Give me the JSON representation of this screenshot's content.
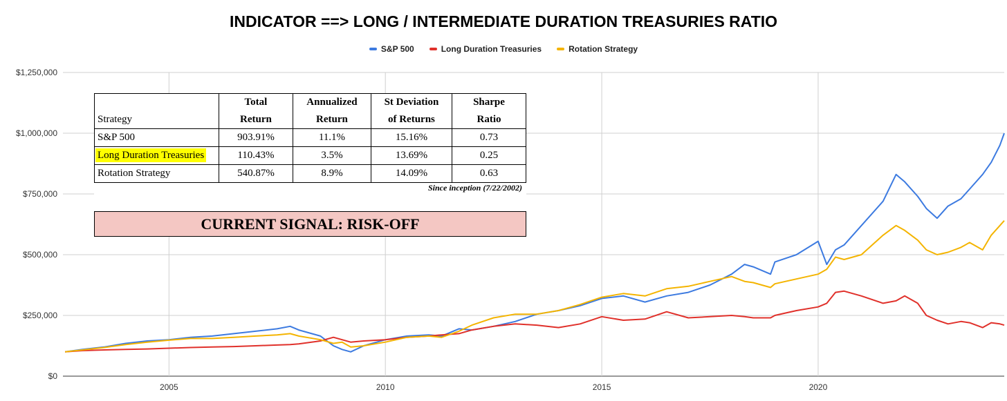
{
  "title": "INDICATOR ==> LONG / INTERMEDIATE DURATION TREASURIES RATIO",
  "legend": [
    {
      "label": "S&P 500",
      "color": "#3c7ae0"
    },
    {
      "label": "Long Duration Treasuries",
      "color": "#e0302a"
    },
    {
      "label": "Rotation Strategy",
      "color": "#f4b400"
    }
  ],
  "stats_table": {
    "headers": [
      [
        "",
        "Strategy"
      ],
      [
        "Total",
        "Return"
      ],
      [
        "Annualized",
        "Return"
      ],
      [
        "St Deviation",
        "of Returns"
      ],
      [
        "Sharpe",
        "Ratio"
      ]
    ],
    "rows": [
      {
        "strategy": "S&P 500",
        "total": "903.91%",
        "annualized": "11.1%",
        "stdev": "15.16%",
        "sharpe": "0.73"
      },
      {
        "strategy": "Long Duration Treasuries",
        "total": "110.43%",
        "annualized": "3.5%",
        "stdev": "13.69%",
        "sharpe": "0.25"
      },
      {
        "strategy": "Rotation Strategy",
        "total": "540.87%",
        "annualized": "8.9%",
        "stdev": "14.09%",
        "sharpe": "0.63"
      }
    ],
    "note": "Since inception (7/22/2002)",
    "signal": "CURRENT SIGNAL: RISK-OFF",
    "signal_color": "#f4c7c3",
    "highlight_color": "#ffff00"
  },
  "chart_data": {
    "type": "line",
    "title": "INDICATOR ==> LONG / INTERMEDIATE DURATION TREASURIES RATIO",
    "xlabel": "",
    "ylabel": "",
    "xlim": [
      2002.55,
      2024.3
    ],
    "ylim": [
      0,
      1250000
    ],
    "x_ticks": [
      2005,
      2010,
      2015,
      2020
    ],
    "y_ticks": [
      {
        "value": 0,
        "label": "$0"
      },
      {
        "value": 250000,
        "label": "$250,000"
      },
      {
        "value": 500000,
        "label": "$500,000"
      },
      {
        "value": 750000,
        "label": "$750,000"
      },
      {
        "value": 1000000,
        "label": "$1,000,000"
      },
      {
        "value": 1250000,
        "label": "$1,250,000"
      }
    ],
    "grid": true,
    "legend_position": "top-center",
    "x": [
      2002.6,
      2003.0,
      2003.5,
      2004.0,
      2004.5,
      2005.0,
      2005.5,
      2006.0,
      2006.5,
      2007.0,
      2007.5,
      2007.8,
      2008.0,
      2008.5,
      2008.8,
      2009.0,
      2009.2,
      2009.5,
      2010.0,
      2010.5,
      2011.0,
      2011.3,
      2011.7,
      2012.0,
      2012.5,
      2013.0,
      2013.5,
      2014.0,
      2014.5,
      2015.0,
      2015.5,
      2016.0,
      2016.5,
      2017.0,
      2017.5,
      2018.0,
      2018.3,
      2018.5,
      2018.9,
      2019.0,
      2019.5,
      2020.0,
      2020.2,
      2020.4,
      2020.6,
      2021.0,
      2021.5,
      2021.8,
      2022.0,
      2022.3,
      2022.5,
      2022.75,
      2023.0,
      2023.3,
      2023.5,
      2023.8,
      2024.0,
      2024.2,
      2024.3
    ],
    "series": [
      {
        "name": "S&P 500",
        "color": "#3c7ae0",
        "values": [
          100000,
          110000,
          120000,
          135000,
          145000,
          150000,
          160000,
          165000,
          175000,
          185000,
          195000,
          205000,
          190000,
          165000,
          125000,
          110000,
          100000,
          125000,
          150000,
          165000,
          170000,
          165000,
          195000,
          190000,
          205000,
          225000,
          255000,
          270000,
          290000,
          320000,
          330000,
          305000,
          330000,
          345000,
          375000,
          420000,
          460000,
          450000,
          420000,
          470000,
          500000,
          555000,
          460000,
          520000,
          540000,
          620000,
          720000,
          830000,
          800000,
          740000,
          690000,
          650000,
          700000,
          730000,
          770000,
          830000,
          880000,
          950000,
          1000000
        ]
      },
      {
        "name": "Long Duration Treasuries",
        "color": "#e0302a",
        "values": [
          100000,
          105000,
          108000,
          110000,
          112000,
          115000,
          118000,
          120000,
          122000,
          125000,
          128000,
          130000,
          133000,
          145000,
          160000,
          150000,
          140000,
          145000,
          150000,
          160000,
          165000,
          170000,
          175000,
          190000,
          205000,
          215000,
          210000,
          200000,
          215000,
          245000,
          230000,
          235000,
          265000,
          240000,
          245000,
          250000,
          245000,
          240000,
          240000,
          250000,
          270000,
          285000,
          300000,
          345000,
          350000,
          330000,
          300000,
          310000,
          330000,
          300000,
          250000,
          230000,
          215000,
          225000,
          220000,
          200000,
          220000,
          215000,
          210000
        ]
      },
      {
        "name": "Rotation Strategy",
        "color": "#f4b400",
        "values": [
          100000,
          108000,
          118000,
          130000,
          140000,
          148000,
          155000,
          155000,
          160000,
          165000,
          170000,
          175000,
          165000,
          150000,
          135000,
          140000,
          120000,
          125000,
          140000,
          160000,
          165000,
          160000,
          185000,
          210000,
          240000,
          255000,
          255000,
          270000,
          295000,
          325000,
          340000,
          330000,
          360000,
          370000,
          390000,
          410000,
          390000,
          385000,
          365000,
          380000,
          400000,
          420000,
          440000,
          490000,
          480000,
          500000,
          580000,
          620000,
          600000,
          560000,
          520000,
          500000,
          510000,
          530000,
          550000,
          520000,
          580000,
          620000,
          640000
        ]
      }
    ]
  }
}
